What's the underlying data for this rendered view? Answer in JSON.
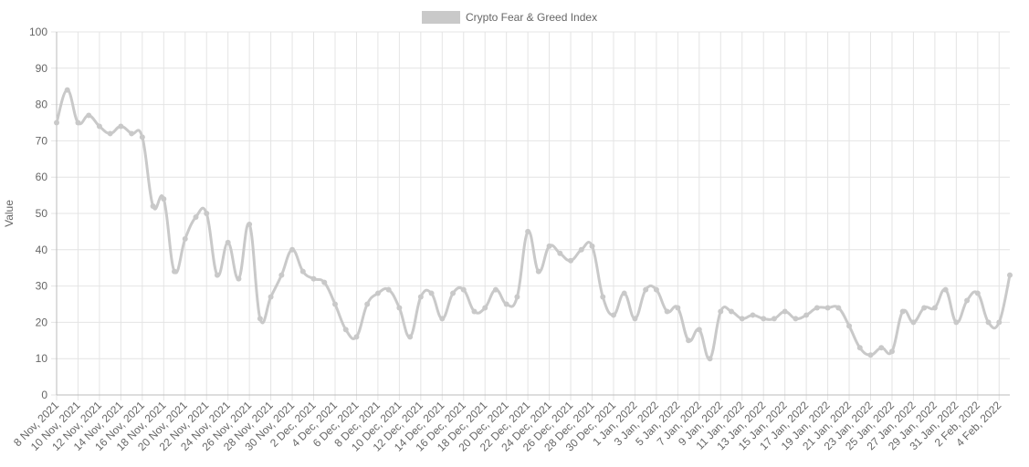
{
  "chart_data": {
    "type": "line",
    "y_label": "Value",
    "ylim": [
      0,
      100
    ],
    "yticks": [
      0,
      10,
      20,
      30,
      40,
      50,
      60,
      70,
      80,
      90,
      100
    ],
    "grid": true,
    "legend": "top",
    "categories": [
      "8 Nov, 2021",
      null,
      "10 Nov, 2021",
      null,
      "12 Nov, 2021",
      null,
      "14 Nov, 2021",
      null,
      "16 Nov, 2021",
      null,
      "18 Nov, 2021",
      null,
      "20 Nov, 2021",
      null,
      "22 Nov, 2021",
      null,
      "24 Nov, 2021",
      null,
      "26 Nov, 2021",
      null,
      "28 Nov, 2021",
      null,
      "30 Nov, 2021",
      null,
      "2 Dec, 2021",
      null,
      "4 Dec, 2021",
      null,
      "6 Dec, 2021",
      null,
      "8 Dec, 2021",
      null,
      "10 Dec, 2021",
      null,
      "12 Dec, 2021",
      null,
      "14 Dec, 2021",
      null,
      "16 Dec, 2021",
      null,
      "18 Dec, 2021",
      null,
      "20 Dec, 2021",
      null,
      "22 Dec, 2021",
      null,
      "24 Dec, 2021",
      null,
      "26 Dec, 2021",
      null,
      "28 Dec, 2021",
      null,
      "30 Dec, 2021",
      null,
      "1 Jan, 2022",
      null,
      "3 Jan, 2022",
      null,
      "5 Jan, 2022",
      null,
      "7 Jan, 2022",
      null,
      "9 Jan, 2022",
      null,
      "11 Jan, 2022",
      null,
      "13 Jan, 2022",
      null,
      "15 Jan, 2022",
      null,
      "17 Jan, 2022",
      null,
      "19 Jan, 2022",
      null,
      "21 Jan, 2022",
      null,
      "23 Jan, 2022",
      null,
      "25 Jan, 2022",
      null,
      "27 Jan, 2022",
      null,
      "29 Jan, 2022",
      null,
      "31 Jan, 2022",
      null,
      "2 Feb, 2022",
      null,
      "4 Feb, 2022",
      null
    ],
    "series": [
      {
        "name": "Crypto Fear & Greed Index",
        "color": "#c9c9c9",
        "values": [
          75,
          84,
          75,
          77,
          74,
          72,
          74,
          72,
          71,
          52,
          54,
          34,
          43,
          49,
          50,
          33,
          42,
          32,
          47,
          21,
          27,
          33,
          40,
          34,
          32,
          31,
          25,
          18,
          16,
          25,
          28,
          29,
          24,
          16,
          27,
          28,
          21,
          28,
          29,
          23,
          24,
          29,
          25,
          27,
          45,
          34,
          41,
          39,
          37,
          40,
          41,
          27,
          22,
          28,
          21,
          29,
          29,
          23,
          24,
          15,
          18,
          10,
          23,
          23,
          21,
          22,
          21,
          21,
          23,
          21,
          22,
          24,
          24,
          24,
          19,
          13,
          11,
          13,
          12,
          23,
          20,
          24,
          24,
          29,
          20,
          26,
          28,
          20,
          20,
          33
        ]
      }
    ]
  }
}
